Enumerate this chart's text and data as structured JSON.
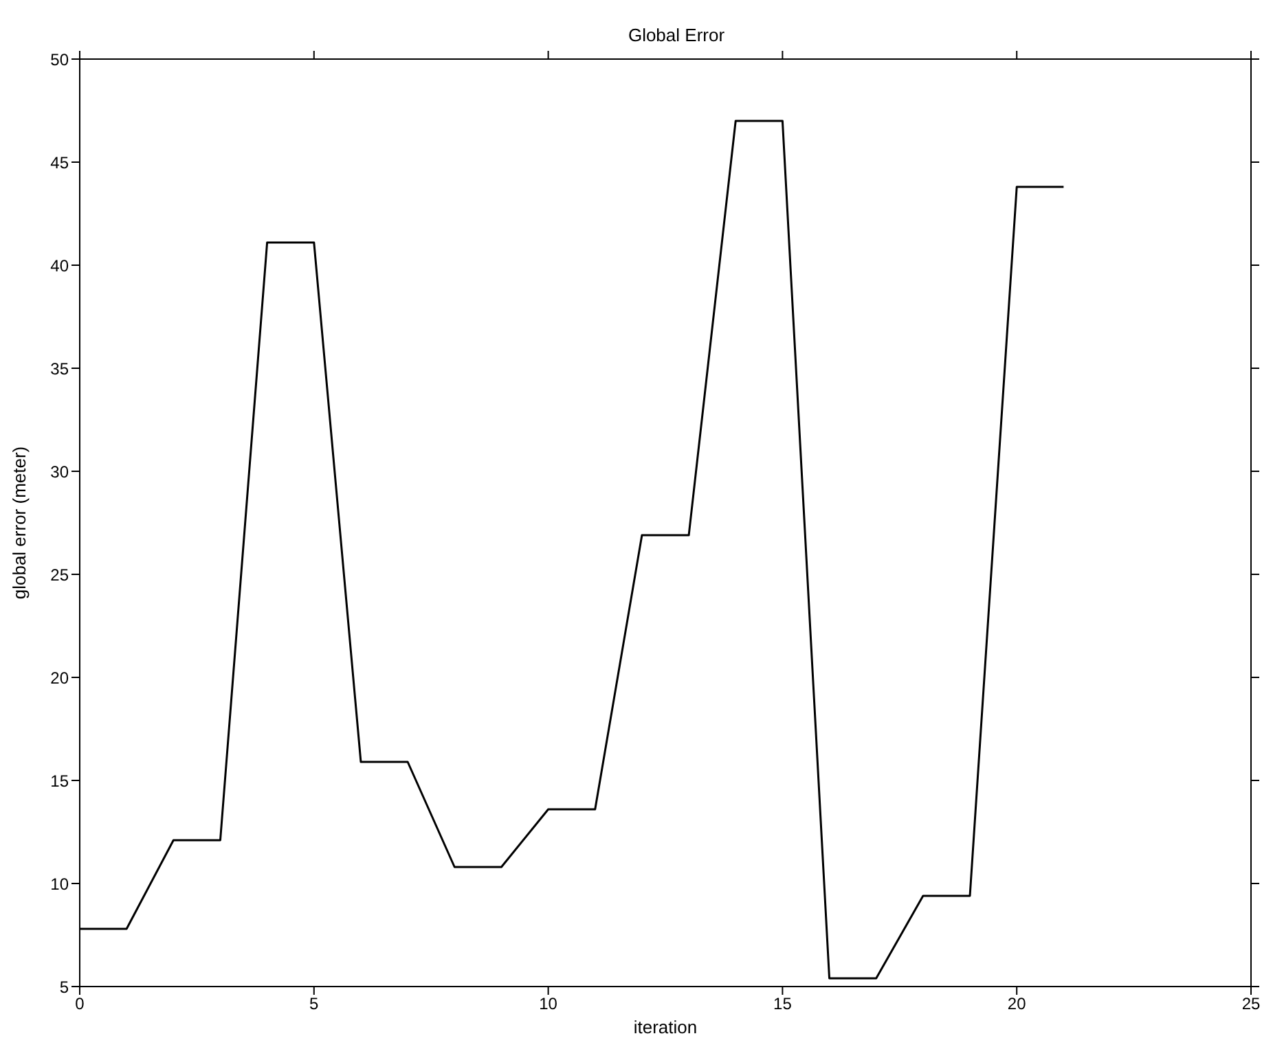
{
  "chart_data": {
    "type": "line",
    "title": "Global Error",
    "xlabel": "iteration",
    "ylabel": "global error (meter)",
    "x": [
      0,
      1,
      2,
      3,
      4,
      5,
      6,
      7,
      8,
      9,
      10,
      11,
      12,
      13,
      14,
      15,
      16,
      17,
      18,
      19,
      20,
      21
    ],
    "series": [
      {
        "color": "#000000",
        "values": [
          7.8,
          7.8,
          12.1,
          12.1,
          41.1,
          41.1,
          15.9,
          15.9,
          10.8,
          10.8,
          13.6,
          13.6,
          26.9,
          26.9,
          47.0,
          47.0,
          5.4,
          5.4,
          9.4,
          9.4,
          43.8,
          43.8
        ]
      }
    ],
    "xlim": [
      0,
      25
    ],
    "xticks": [
      0,
      5,
      10,
      15,
      20,
      25
    ],
    "ylim": [
      5,
      50
    ],
    "yticks": [
      5,
      10,
      15,
      20,
      25,
      30,
      35,
      40,
      45,
      50
    ],
    "grid": false,
    "legend": false,
    "marker": "none",
    "line_style": "solid"
  }
}
